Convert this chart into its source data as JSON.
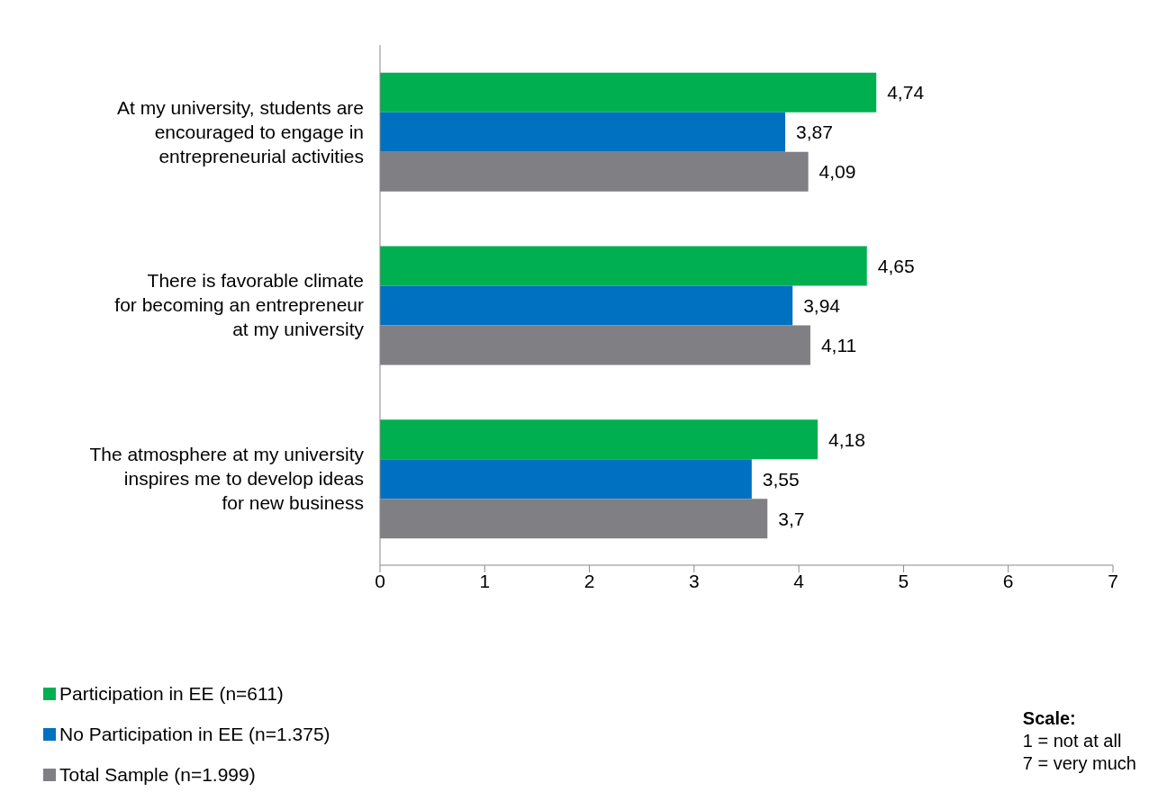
{
  "chart_data": {
    "type": "bar",
    "orientation": "horizontal",
    "categories": [
      "At my university, students are\nencouraged to engage in\nentrepreneurial activities",
      "There is favorable climate\nfor becoming an entrepreneur\nat my university",
      "The atmosphere at my university\ninspires me to develop ideas\nfor new business"
    ],
    "series": [
      {
        "name": "Participation in EE (n=611)",
        "color": "#00b050",
        "values": [
          4.74,
          4.65,
          4.18
        ],
        "value_labels": [
          "4,74",
          "4,65",
          "4,18"
        ]
      },
      {
        "name": "No Participation in EE (n=1.375)",
        "color": "#0070c0",
        "values": [
          3.87,
          3.94,
          3.55
        ],
        "value_labels": [
          "3,87",
          "3,94",
          "3,55"
        ]
      },
      {
        "name": "Total Sample (n=1.999)",
        "color": "#7f7f84",
        "values": [
          4.09,
          4.11,
          3.7
        ],
        "value_labels": [
          "4,09",
          "4,11",
          "3,7"
        ]
      }
    ],
    "xlim": [
      0,
      7
    ],
    "xticks": [
      0,
      1,
      2,
      3,
      4,
      5,
      6,
      7
    ],
    "grid": false,
    "legend": "bottom left",
    "annotations": [
      "Scale:",
      "1 = not at all",
      "7 = very much"
    ]
  }
}
